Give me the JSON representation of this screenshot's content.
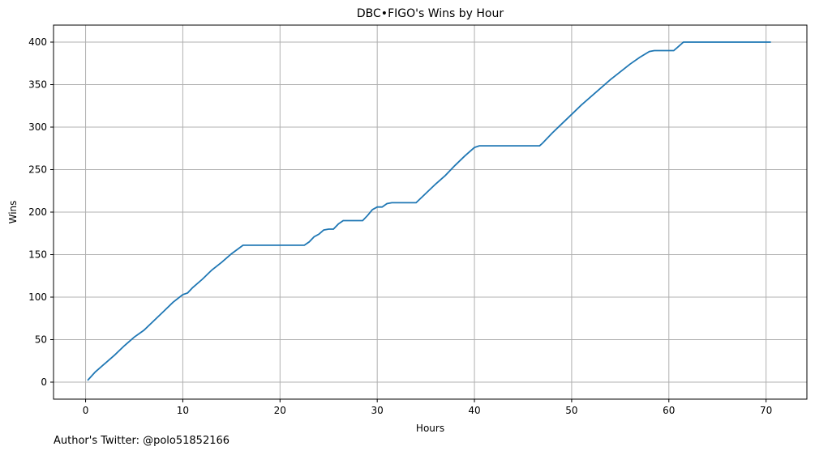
{
  "chart_data": {
    "type": "line",
    "title": "DBC•FIGO's Wins by Hour",
    "xlabel": "Hours",
    "ylabel": "Wins",
    "xlim": [
      -3.3,
      74.2
    ],
    "ylim": [
      -20,
      420
    ],
    "xticks": [
      0,
      10,
      20,
      30,
      40,
      50,
      60,
      70
    ],
    "yticks": [
      0,
      50,
      100,
      150,
      200,
      250,
      300,
      350,
      400
    ],
    "grid": true,
    "line_color": "#1f77b4",
    "series": [
      {
        "x": [
          0.2,
          1.0,
          2.0,
          3.0,
          4.0,
          5.0,
          6.0,
          7.0,
          8.0,
          9.0,
          10.0,
          10.5,
          11.0,
          12.0,
          13.0,
          14.0,
          15.0,
          16.2,
          17.0,
          20.0,
          22.5,
          23.0,
          23.5,
          24.0,
          24.5,
          25.0,
          25.5,
          26.0,
          26.5,
          27.0,
          28.0,
          28.5,
          29.0,
          29.5,
          30.0,
          30.5,
          31.0,
          31.5,
          32.0,
          33.0,
          34.0,
          35.0,
          36.0,
          37.0,
          38.0,
          39.0,
          40.0,
          40.5,
          41.0,
          45.0,
          46.7,
          47.0,
          48.0,
          49.0,
          50.0,
          51.0,
          52.0,
          53.0,
          54.0,
          55.0,
          56.0,
          57.0,
          58.0,
          58.5,
          59.0,
          60.0,
          60.5,
          61.0,
          61.5,
          62.0,
          65.0,
          70.5
        ],
        "y": [
          2,
          12,
          22,
          32,
          43,
          53,
          61,
          72,
          83,
          94,
          103,
          105,
          111,
          121,
          132,
          141,
          151,
          161,
          161,
          161,
          161,
          165,
          171,
          174,
          179,
          180,
          180,
          186,
          190,
          190,
          190,
          190,
          196,
          203,
          206,
          206,
          210,
          211,
          211,
          211,
          211,
          222,
          233,
          243,
          255,
          266,
          276,
          278,
          278,
          278,
          278,
          281,
          293,
          304,
          315,
          326,
          336,
          346,
          356,
          365,
          374,
          382,
          389,
          390,
          390,
          390,
          390,
          395,
          400,
          400,
          400,
          400
        ]
      }
    ]
  },
  "caption": "Author's Twitter: @polo51852166"
}
